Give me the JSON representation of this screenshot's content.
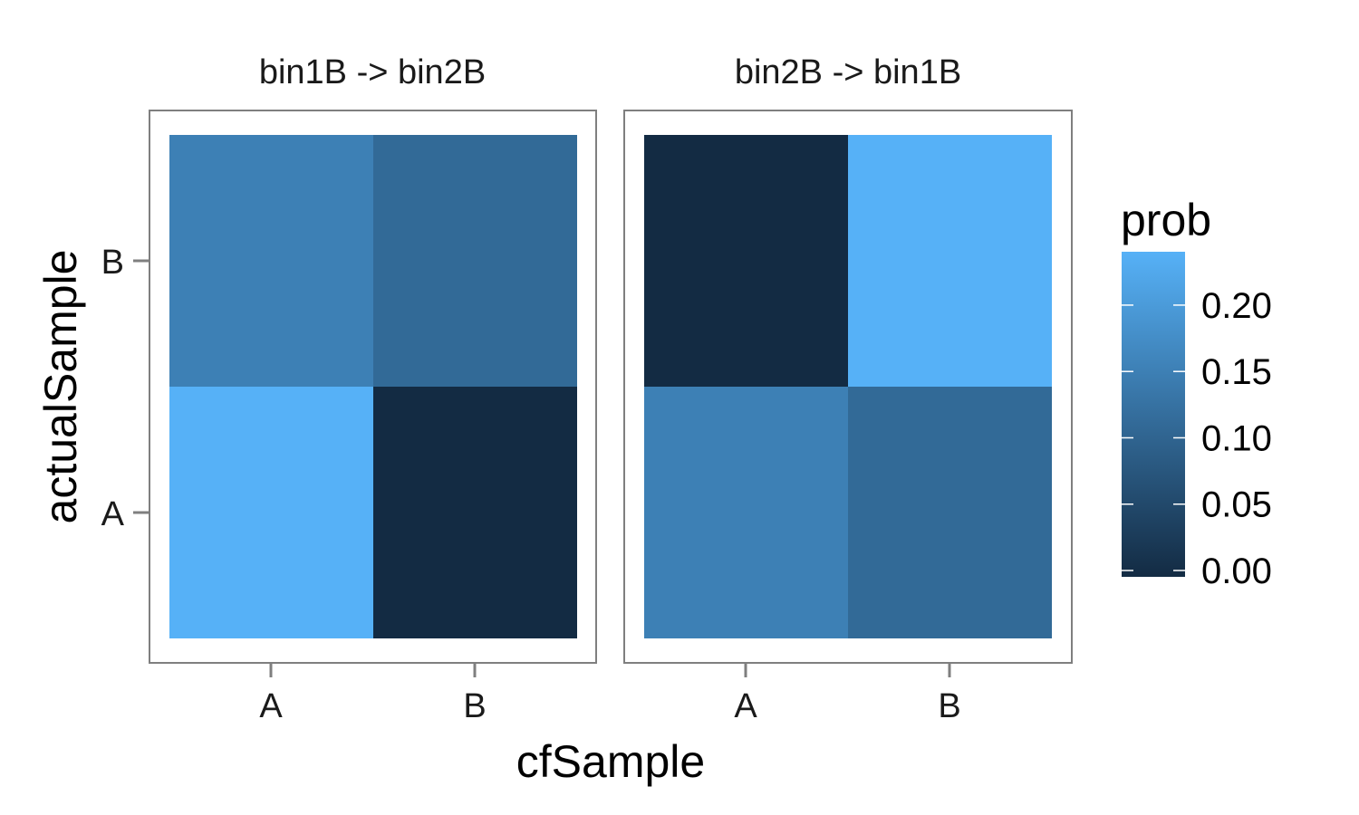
{
  "chart_data": {
    "type": "heatmap",
    "xlabel": "cfSample",
    "ylabel": "actualSample",
    "x_categories": [
      "A",
      "B"
    ],
    "y_categories": [
      "A",
      "B"
    ],
    "facets": [
      {
        "title": "bin1B -> bin2B",
        "cells": [
          {
            "x": "A",
            "y": "B",
            "value": 0.155
          },
          {
            "x": "B",
            "y": "B",
            "value": 0.115
          },
          {
            "x": "A",
            "y": "A",
            "value": 0.245
          },
          {
            "x": "B",
            "y": "A",
            "value": 0.0
          }
        ]
      },
      {
        "title": "bin2B -> bin1B",
        "cells": [
          {
            "x": "A",
            "y": "B",
            "value": 0.0
          },
          {
            "x": "B",
            "y": "B",
            "value": 0.245
          },
          {
            "x": "A",
            "y": "A",
            "value": 0.155
          },
          {
            "x": "B",
            "y": "A",
            "value": 0.115
          }
        ]
      }
    ],
    "legend": {
      "title": "prob",
      "ticks": [
        "0.00",
        "0.05",
        "0.10",
        "0.15",
        "0.20"
      ],
      "range": [
        0.0,
        0.245
      ],
      "low_color": "#132B43",
      "high_color": "#56B1F7"
    }
  }
}
